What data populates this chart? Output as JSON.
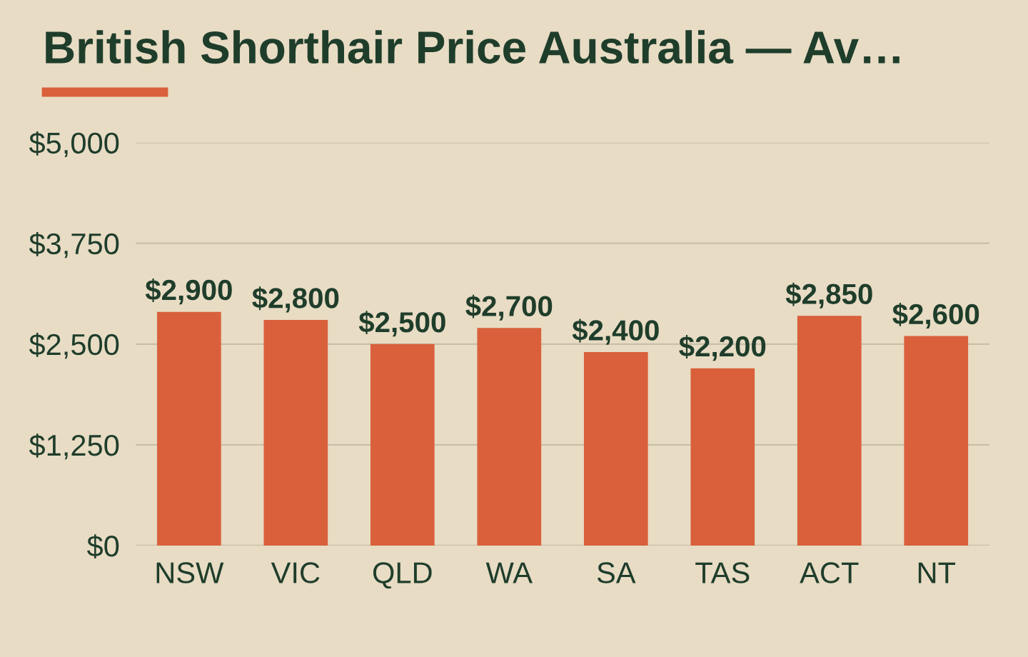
{
  "chart_data": {
    "type": "bar",
    "title": "British Shorthair Price Australia — Av…",
    "categories": [
      "NSW",
      "VIC",
      "QLD",
      "WA",
      "SA",
      "TAS",
      "ACT",
      "NT"
    ],
    "values": [
      2900,
      2800,
      2500,
      2700,
      2400,
      2200,
      2850,
      2600
    ],
    "value_labels": [
      "$2,900",
      "$2,800",
      "$2,500",
      "$2,700",
      "$2,400",
      "$2,200",
      "$2,850",
      "$2,600"
    ],
    "color": "#d9603b",
    "ylim": [
      0,
      5000
    ],
    "yticks": [
      {
        "value": 0,
        "label": "$0"
      },
      {
        "value": 1250,
        "label": "$1,250"
      },
      {
        "value": 2500,
        "label": "$2,500"
      },
      {
        "value": 3750,
        "label": "$3,750"
      },
      {
        "value": 5000,
        "label": "$5,000"
      }
    ],
    "grid": "y"
  }
}
